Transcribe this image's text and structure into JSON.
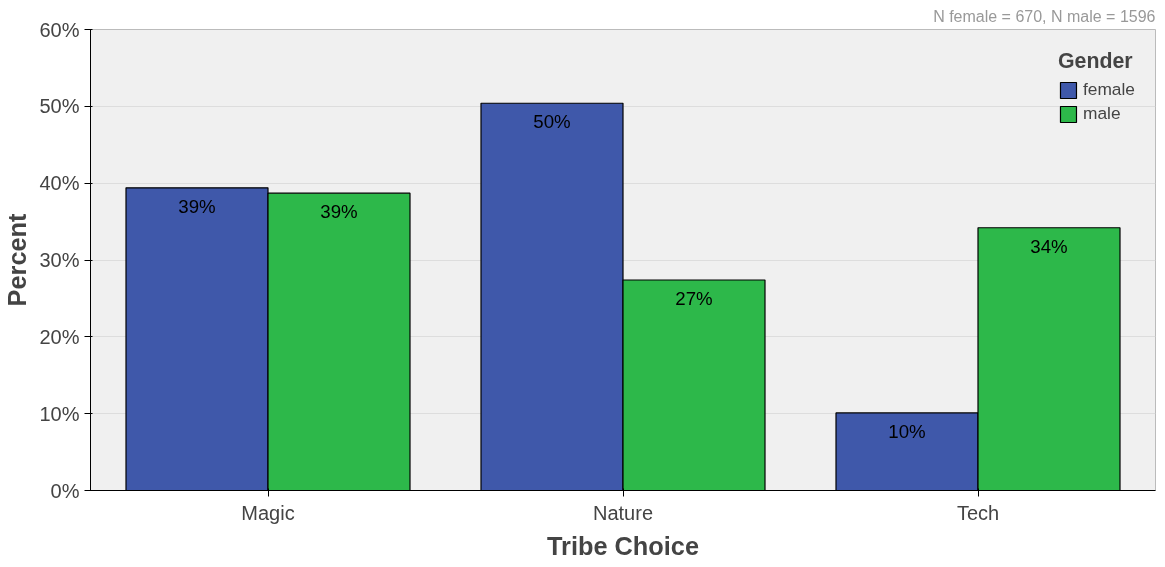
{
  "chart_data": {
    "type": "bar",
    "xlabel": "Tribe Choice",
    "ylabel": "Percent",
    "legend_title": "Gender",
    "annotations": [
      "N female = 670, N male = 1596"
    ],
    "categories": [
      "Magic",
      "Nature",
      "Tech"
    ],
    "series": [
      {
        "name": "female",
        "color": "#3f58aa",
        "values": [
          39.4,
          50.4,
          10.1
        ],
        "value_labels": [
          "39%",
          "50%",
          "10%"
        ]
      },
      {
        "name": "male",
        "color": "#2db84a",
        "values": [
          38.7,
          27.4,
          34.2
        ],
        "value_labels": [
          "39%",
          "27%",
          "34%"
        ]
      }
    ],
    "ylim": [
      0,
      60
    ],
    "yticks": [
      {
        "value": 0,
        "label": "0%"
      },
      {
        "value": 10,
        "label": "10%"
      },
      {
        "value": 20,
        "label": "20%"
      },
      {
        "value": 30,
        "label": "30%"
      },
      {
        "value": 40,
        "label": "40%"
      },
      {
        "value": 50,
        "label": "50%"
      },
      {
        "value": 60,
        "label": "60%"
      }
    ],
    "grid": "y",
    "legend": "top right"
  }
}
